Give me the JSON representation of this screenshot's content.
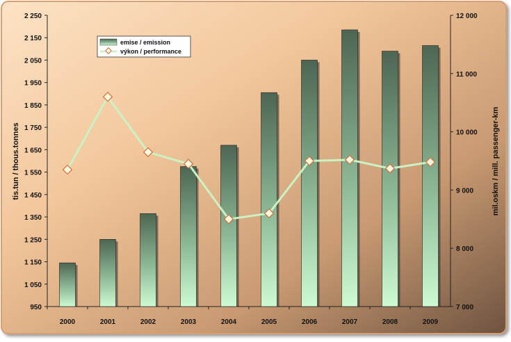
{
  "chart_data": {
    "type": "bar+line",
    "categories": [
      "2000",
      "2001",
      "2002",
      "2003",
      "2004",
      "2005",
      "2006",
      "2007",
      "2008",
      "2009"
    ],
    "series": [
      {
        "name": "emise / emission",
        "type": "bar",
        "axis": "left",
        "values": [
          1145,
          1250,
          1365,
          1575,
          1670,
          1905,
          2050,
          2185,
          2090,
          2115
        ]
      },
      {
        "name": "výkon / performance",
        "type": "line",
        "axis": "right",
        "values": [
          9350,
          10600,
          9650,
          9450,
          8500,
          8600,
          9500,
          9520,
          9370,
          9480
        ]
      }
    ],
    "y_left": {
      "label": "tis.tun / thous.tonnes",
      "range": [
        950,
        2250
      ],
      "ticks": [
        "950",
        "1 050",
        "1 150",
        "1 250",
        "1 350",
        "1 450",
        "1 550",
        "1 650",
        "1 750",
        "1 850",
        "1 950",
        "2 050",
        "2 150",
        "2 250"
      ]
    },
    "y_right": {
      "label": "mil.oskm / mill. passenger-km",
      "range": [
        7000,
        12000
      ],
      "ticks": [
        "7 000",
        "8 000",
        "9 000",
        "10 000",
        "11 000",
        "12 000"
      ]
    },
    "legend_placement": "top-left",
    "grid": false,
    "colors": {
      "bar_top": "#4f6a55",
      "bar_bottom": "#c7f7cc",
      "line": "#c9f3c4",
      "marker_fill": "#fff9e0",
      "marker_stroke": "#d36b3c",
      "bg_light": "#f6cfa4",
      "bg_dark": "#7a5c43"
    }
  }
}
